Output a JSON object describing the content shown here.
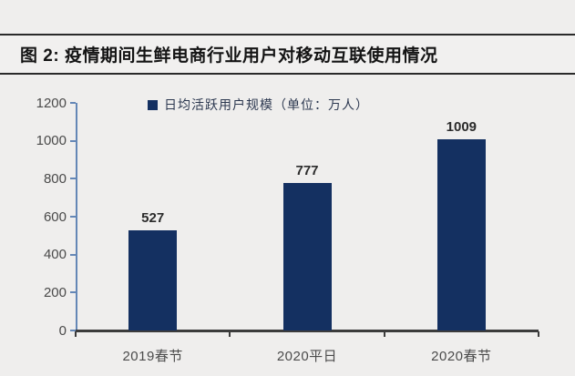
{
  "figure": {
    "title": "图 2:  疫情期间生鲜电商行业用户对移动互联使用情况"
  },
  "chart_data": {
    "type": "bar",
    "title": "图 2: 疫情期间生鲜电商行业用户对移动互联使用情况",
    "legend": "日均活跃用户规模（单位：万人）",
    "legend_position": "top-center",
    "categories": [
      "2019春节",
      "2020平日",
      "2020春节"
    ],
    "series": [
      {
        "name": "日均活跃用户规模（单位：万人）",
        "values": [
          527,
          777,
          1009
        ]
      }
    ],
    "values": [
      527,
      777,
      1009
    ],
    "data_labels": [
      "527",
      "777",
      "1009"
    ],
    "xlabel": "",
    "ylabel": "",
    "ylim": [
      0,
      1200
    ],
    "yticks": [
      0,
      200,
      400,
      600,
      800,
      1000,
      1200
    ],
    "grid": false,
    "colors": {
      "bar": "#143061",
      "y_axis": "#6487b6",
      "x_axis": "#3c3c3c",
      "tick_label": "#4a4a4a",
      "value_label": "#2b2b2b",
      "legend_text": "#2c3850",
      "title_text": "#141414",
      "background": "#efeeed",
      "title_border": "#2a2a2a"
    }
  }
}
